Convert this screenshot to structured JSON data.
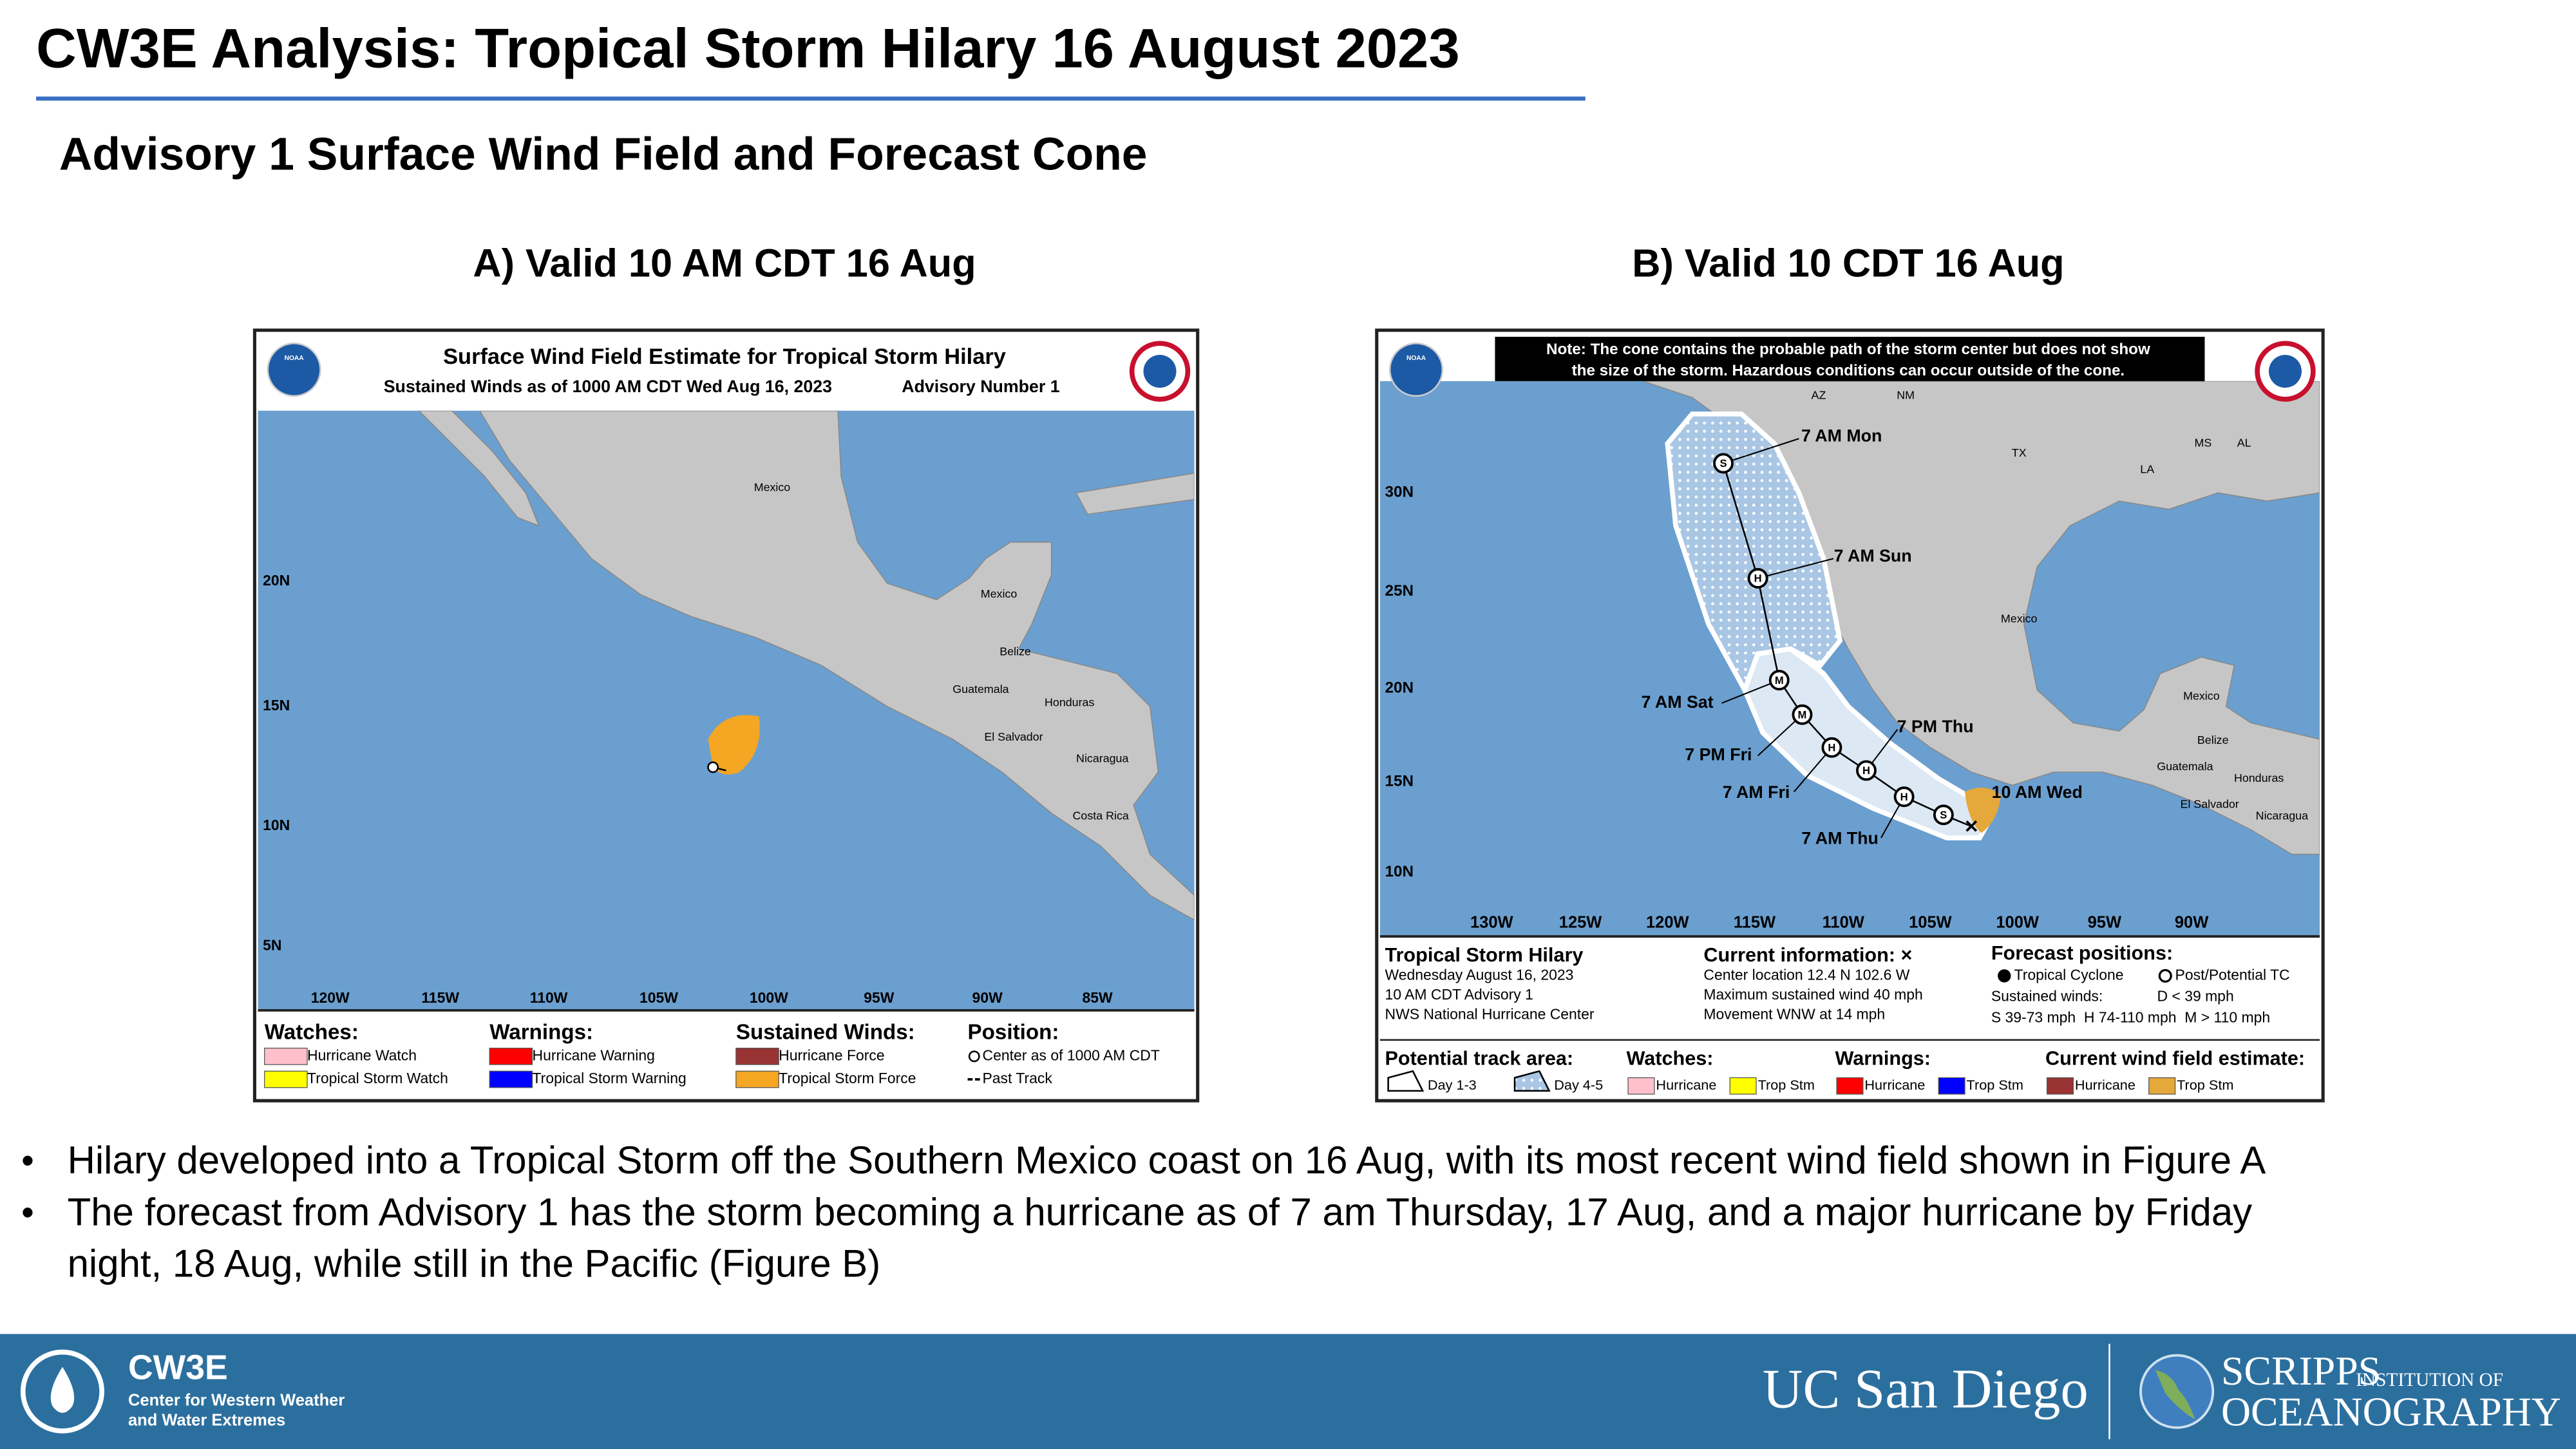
{
  "header": {
    "title": "CW3E Analysis: Tropical Storm Hilary 16 August 2023",
    "subtitle": "Advisory 1 Surface Wind Field and Forecast Cone"
  },
  "panels": [
    {
      "title": "A) Valid 10 AM CDT 16 Aug",
      "map": {
        "logo": "NOAA",
        "title": "Surface Wind Field Estimate for Tropical Storm Hilary",
        "subtitle": "Sustained Winds as of 1000 AM CDT Wed Aug 16, 2023",
        "advisory": "Advisory Number 1",
        "lat_labels": [
          "20N",
          "15N",
          "10N",
          "5N"
        ],
        "lon_labels": [
          "120W",
          "115W",
          "110W",
          "105W",
          "100W",
          "95W",
          "90W",
          "85W"
        ],
        "places": [
          "Mexico",
          "Mexico",
          "Belize",
          "Guatemala",
          "Honduras",
          "El Salvador",
          "Nicaragua",
          "Costa Rica"
        ],
        "legend": [
          {
            "heading": "Watches:",
            "items": [
              "Hurricane Watch",
              "Tropical Storm Watch"
            ]
          },
          {
            "heading": "Warnings:",
            "items": [
              "Hurricane Warning",
              "Tropical Storm Warning"
            ]
          },
          {
            "heading": "Sustained Winds:",
            "items": [
              "Hurricane Force",
              "Tropical Storm Force"
            ]
          },
          {
            "heading": "Position:",
            "items": [
              "Center as of 1000 AM CDT",
              "Past Track"
            ]
          }
        ]
      }
    },
    {
      "title": "B) Valid 10 CDT 16 Aug",
      "map": {
        "logo": "NOAA",
        "note": [
          "Note: The cone contains the probable path of the storm center but does not show",
          "the size of the storm. Hazardous conditions can occur outside of the cone."
        ],
        "lat_labels": [
          "30N",
          "25N",
          "20N",
          "15N",
          "10N"
        ],
        "lon_labels": [
          "130W",
          "125W",
          "120W",
          "115W",
          "110W",
          "105W",
          "100W",
          "95W",
          "90W"
        ],
        "places": [
          "AZ",
          "NM",
          "TX",
          "LA",
          "MS",
          "AL",
          "Mexico",
          "Mexico",
          "Belize",
          "Guatemala",
          "Honduras",
          "El Salvador",
          "Nicaragua"
        ],
        "forecast_labels": [
          "7 AM Mon",
          "7 AM Sun",
          "7 AM Sat",
          "7 PM Thu",
          "7 PM Fri",
          "7 AM Fri",
          "10 AM Wed",
          "7 AM Thu"
        ],
        "intensity_codes": [
          "S",
          "H",
          "H",
          "H",
          "M",
          "M",
          "H",
          "S"
        ],
        "storm": {
          "name": "Tropical Storm Hilary",
          "lines": [
            "Wednesday August 16, 2023",
            "10 AM CDT Advisory 1",
            "NWS National Hurricane Center"
          ]
        },
        "current": {
          "heading": "Current information: ×",
          "lines": [
            "Center location 12.4 N 102.6 W",
            "Maximum sustained wind 40 mph",
            "Movement WNW at 14 mph"
          ]
        },
        "forecast": {
          "heading": "Forecast positions:",
          "cyclone": "Tropical Cyclone",
          "post": "Post/Potential TC",
          "winds_label": "Sustained winds:",
          "depression": "D < 39 mph",
          "scale": "S 39-73 mph  H 74-110 mph  M > 110 mph"
        },
        "track_area": {
          "heading": "Potential track area:",
          "items": [
            "Day 1-3",
            "Day 4-5"
          ]
        },
        "watches": {
          "heading": "Watches:",
          "items": [
            "Hurricane",
            "Trop Stm"
          ]
        },
        "warnings": {
          "heading": "Warnings:",
          "items": [
            "Hurricane",
            "Trop Stm"
          ]
        },
        "wind_field": {
          "heading": "Current wind field estimate:",
          "items": [
            "Hurricane",
            "Trop Stm"
          ]
        }
      }
    }
  ],
  "bullets": [
    {
      "lines": [
        "Hilary developed into a Tropical Storm off the Southern Mexico coast on 16 Aug, with its most recent wind field shown in Figure A"
      ]
    },
    {
      "lines": [
        "The forecast from Advisory 1 has the storm becoming a hurricane as of 7 am Thursday, 17 Aug, and a major hurricane by Friday",
        "night, 18 Aug, while still in the Pacific (Figure B)"
      ]
    }
  ],
  "bullet_symbol": "•",
  "footer": {
    "cw3e": "CW3E",
    "cw3e_lines": [
      "Center for Western Weather",
      "and Water Extremes"
    ],
    "ucsd": "UC San Diego",
    "scripps": "SCRIPPS",
    "institution": "INSTITUTION OF",
    "oceanography": "OCEANOGRAPHY"
  }
}
